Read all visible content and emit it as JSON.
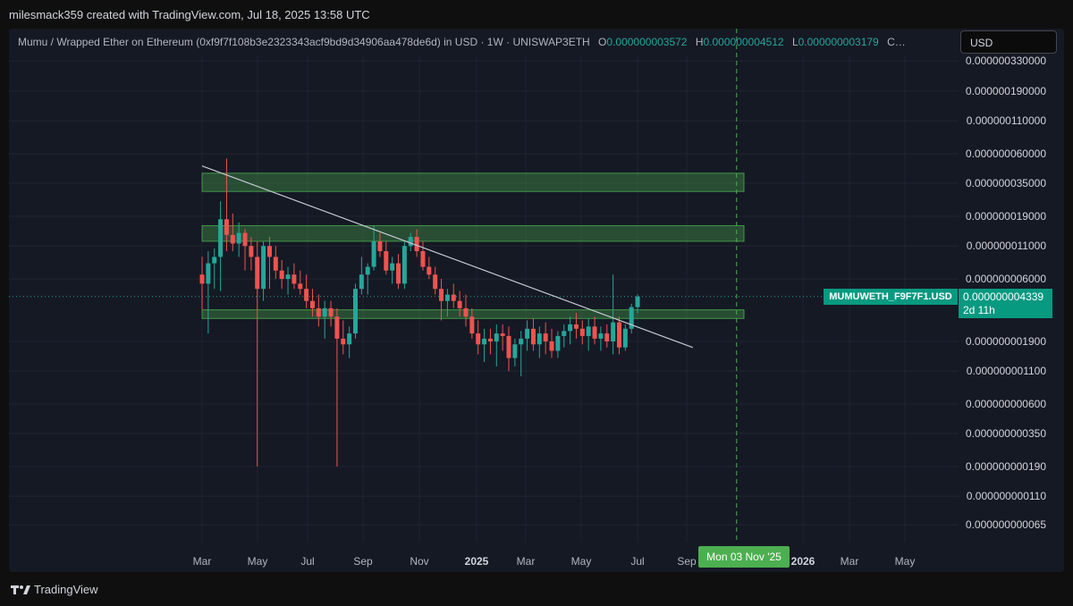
{
  "header": {
    "creator_text": "milesmack359 created with TradingView.com, Jul 18, 2025 13:58 UTC"
  },
  "legend": {
    "title": "Mumu / Wrapped Ether on Ethereum (0xf9f7f108b3e2323343acf9bd9d34906aa478de6d) in USD · 1W · UNISWAP3ETH",
    "open_key": "O",
    "open_value": "0.000000003572",
    "high_key": "H",
    "high_value": "0.000000004512",
    "low_key": "L",
    "low_value": "0.000000003179",
    "close_key": "C…"
  },
  "currency_button": {
    "label": "USD"
  },
  "price_axis": {
    "labels": [
      "0.000000330000",
      "0.000000190000",
      "0.000000110000",
      "0.000000060000",
      "0.000000035000",
      "0.000000019000",
      "0.000000011000",
      "0.000000006000",
      "0.000000001900",
      "0.000000001100",
      "0.000000000600",
      "0.000000000350",
      "0.000000000190",
      "0.000000000110",
      "0.000000000065"
    ]
  },
  "time_axis": {
    "labels": [
      "Mar",
      "May",
      "Jul",
      "Sep",
      "Nov",
      "2025",
      "Mar",
      "May",
      "Jul",
      "Sep",
      "2026",
      "Mar",
      "May"
    ],
    "crosshair_label": "Mon 03 Nov '25"
  },
  "symbol_tag": {
    "name": "MUMUWETH_F9F7F1.USD",
    "price": "0.000000004339",
    "countdown": "2d 11h"
  },
  "footer": {
    "brand": "TradingView"
  },
  "colors": {
    "background": "#151924",
    "up": "#26a69a",
    "down": "#ef5350",
    "zone": "#4caf50",
    "crosshair": "#4caf50"
  },
  "chart_data": {
    "type": "candlestick",
    "scale": "log",
    "interval": "1W",
    "pair": "MUMU/WETH",
    "grid": true,
    "candles": [
      {
        "t": "2024-03-03",
        "o": 6.5e-09,
        "h": 9e-09,
        "l": 3.4e-09,
        "c": 5.5e-09
      },
      {
        "t": "2024-03-10",
        "o": 5.5e-09,
        "h": 1e-08,
        "l": 2.2e-09,
        "c": 8e-09
      },
      {
        "t": "2024-03-17",
        "o": 8e-09,
        "h": 1.05e-08,
        "l": 5e-09,
        "c": 9e-09
      },
      {
        "t": "2024-03-24",
        "o": 9e-09,
        "h": 2.5e-08,
        "l": 4.8e-09,
        "c": 1.8e-08
      },
      {
        "t": "2024-03-31",
        "o": 1.8e-08,
        "h": 5.5e-08,
        "l": 1e-08,
        "c": 1.35e-08
      },
      {
        "t": "2024-04-07",
        "o": 1.35e-08,
        "h": 2e-08,
        "l": 1e-08,
        "c": 1.15e-08
      },
      {
        "t": "2024-04-14",
        "o": 1.15e-08,
        "h": 1.7e-08,
        "l": 9e-09,
        "c": 1.4e-08
      },
      {
        "t": "2024-04-21",
        "o": 1.4e-08,
        "h": 1.5e-08,
        "l": 7e-09,
        "c": 1.1e-08
      },
      {
        "t": "2024-04-28",
        "o": 1.1e-08,
        "h": 1.3e-08,
        "l": 7e-09,
        "c": 9e-09
      },
      {
        "t": "2024-05-05",
        "o": 9e-09,
        "h": 1.2e-08,
        "l": 1.9e-10,
        "c": 5e-09
      },
      {
        "t": "2024-05-12",
        "o": 5e-09,
        "h": 1.2e-08,
        "l": 4e-09,
        "c": 1.1e-08
      },
      {
        "t": "2024-05-19",
        "o": 1.1e-08,
        "h": 1.3e-08,
        "l": 5e-09,
        "c": 9e-09
      },
      {
        "t": "2024-05-26",
        "o": 9e-09,
        "h": 1.1e-08,
        "l": 6e-09,
        "c": 7e-09
      },
      {
        "t": "2024-06-02",
        "o": 7e-09,
        "h": 8.5e-09,
        "l": 5e-09,
        "c": 6e-09
      },
      {
        "t": "2024-06-09",
        "o": 6e-09,
        "h": 7.5e-09,
        "l": 4.5e-09,
        "c": 6.5e-09
      },
      {
        "t": "2024-06-16",
        "o": 6.5e-09,
        "h": 8e-09,
        "l": 5e-09,
        "c": 5.5e-09
      },
      {
        "t": "2024-06-23",
        "o": 5.5e-09,
        "h": 7e-09,
        "l": 4.5e-09,
        "c": 5e-09
      },
      {
        "t": "2024-06-30",
        "o": 5e-09,
        "h": 6.5e-09,
        "l": 3.5e-09,
        "c": 4e-09
      },
      {
        "t": "2024-07-07",
        "o": 4e-09,
        "h": 5e-09,
        "l": 3e-09,
        "c": 3.5e-09
      },
      {
        "t": "2024-07-14",
        "o": 3.5e-09,
        "h": 4.5e-09,
        "l": 2.5e-09,
        "c": 3e-09
      },
      {
        "t": "2024-07-21",
        "o": 3e-09,
        "h": 4e-09,
        "l": 2e-09,
        "c": 3.5e-09
      },
      {
        "t": "2024-07-28",
        "o": 3.5e-09,
        "h": 4e-09,
        "l": 2.5e-09,
        "c": 3e-09
      },
      {
        "t": "2024-08-04",
        "o": 3e-09,
        "h": 3.5e-09,
        "l": 1.9e-10,
        "c": 2e-09
      },
      {
        "t": "2024-08-11",
        "o": 2e-09,
        "h": 2.8e-09,
        "l": 1.5e-09,
        "c": 1.8e-09
      },
      {
        "t": "2024-08-18",
        "o": 1.8e-09,
        "h": 2.5e-09,
        "l": 1.4e-09,
        "c": 2.2e-09
      },
      {
        "t": "2024-08-25",
        "o": 2.2e-09,
        "h": 5.5e-09,
        "l": 2e-09,
        "c": 5e-09
      },
      {
        "t": "2024-09-01",
        "o": 5e-09,
        "h": 9e-09,
        "l": 4.5e-09,
        "c": 6.5e-09
      },
      {
        "t": "2024-09-08",
        "o": 6.5e-09,
        "h": 8e-09,
        "l": 4.5e-09,
        "c": 7.5e-09
      },
      {
        "t": "2024-09-15",
        "o": 7.5e-09,
        "h": 1.6e-08,
        "l": 7e-09,
        "c": 1.2e-08
      },
      {
        "t": "2024-09-22",
        "o": 1.2e-08,
        "h": 1.4e-08,
        "l": 9e-09,
        "c": 1e-08
      },
      {
        "t": "2024-09-29",
        "o": 1e-08,
        "h": 1.2e-08,
        "l": 6.5e-09,
        "c": 7e-09
      },
      {
        "t": "2024-10-06",
        "o": 7e-09,
        "h": 9e-09,
        "l": 5.5e-09,
        "c": 8e-09
      },
      {
        "t": "2024-10-13",
        "o": 8e-09,
        "h": 9.5e-09,
        "l": 5e-09,
        "c": 5.5e-09
      },
      {
        "t": "2024-10-20",
        "o": 5.5e-09,
        "h": 1.2e-08,
        "l": 5e-09,
        "c": 1.1e-08
      },
      {
        "t": "2024-10-27",
        "o": 1.1e-08,
        "h": 1.4e-08,
        "l": 1e-08,
        "c": 1.3e-08
      },
      {
        "t": "2024-11-03",
        "o": 1.3e-08,
        "h": 1.5e-08,
        "l": 9e-09,
        "c": 1e-08
      },
      {
        "t": "2024-11-10",
        "o": 1e-08,
        "h": 1.2e-08,
        "l": 7e-09,
        "c": 7.5e-09
      },
      {
        "t": "2024-11-17",
        "o": 7.5e-09,
        "h": 9e-09,
        "l": 6e-09,
        "c": 6.5e-09
      },
      {
        "t": "2024-11-24",
        "o": 6.5e-09,
        "h": 7.5e-09,
        "l": 4.5e-09,
        "c": 5e-09
      },
      {
        "t": "2024-12-01",
        "o": 5e-09,
        "h": 6e-09,
        "l": 2.8e-09,
        "c": 4e-09
      },
      {
        "t": "2024-12-08",
        "o": 4e-09,
        "h": 5e-09,
        "l": 3e-09,
        "c": 4.5e-09
      },
      {
        "t": "2024-12-15",
        "o": 4.5e-09,
        "h": 5.5e-09,
        "l": 3.5e-09,
        "c": 4e-09
      },
      {
        "t": "2024-12-22",
        "o": 4e-09,
        "h": 4.8e-09,
        "l": 3e-09,
        "c": 3.5e-09
      },
      {
        "t": "2024-12-29",
        "o": 3.5e-09,
        "h": 4.5e-09,
        "l": 2.5e-09,
        "c": 3e-09
      },
      {
        "t": "2025-01-05",
        "o": 3e-09,
        "h": 3.5e-09,
        "l": 2e-09,
        "c": 2.2e-09
      },
      {
        "t": "2025-01-12",
        "o": 2.2e-09,
        "h": 2.8e-09,
        "l": 1.5e-09,
        "c": 1.8e-09
      },
      {
        "t": "2025-01-19",
        "o": 1.8e-09,
        "h": 2.4e-09,
        "l": 1.3e-09,
        "c": 2e-09
      },
      {
        "t": "2025-01-26",
        "o": 2e-09,
        "h": 2.4e-09,
        "l": 1.5e-09,
        "c": 1.9e-09
      },
      {
        "t": "2025-02-02",
        "o": 1.9e-09,
        "h": 2.6e-09,
        "l": 1.2e-09,
        "c": 2.2e-09
      },
      {
        "t": "2025-02-09",
        "o": 2.2e-09,
        "h": 2.6e-09,
        "l": 1.6e-09,
        "c": 2.1e-09
      },
      {
        "t": "2025-02-16",
        "o": 2.1e-09,
        "h": 2.5e-09,
        "l": 1.1e-09,
        "c": 1.4e-09
      },
      {
        "t": "2025-02-23",
        "o": 1.4e-09,
        "h": 2e-09,
        "l": 1.2e-09,
        "c": 1.8e-09
      },
      {
        "t": "2025-03-02",
        "o": 1.8e-09,
        "h": 2.3e-09,
        "l": 1e-09,
        "c": 2e-09
      },
      {
        "t": "2025-03-09",
        "o": 2e-09,
        "h": 2.8e-09,
        "l": 1.6e-09,
        "c": 2.4e-09
      },
      {
        "t": "2025-03-16",
        "o": 2.4e-09,
        "h": 2.9e-09,
        "l": 1.6e-09,
        "c": 1.8e-09
      },
      {
        "t": "2025-03-23",
        "o": 1.8e-09,
        "h": 2.5e-09,
        "l": 1.4e-09,
        "c": 2.2e-09
      },
      {
        "t": "2025-03-30",
        "o": 2.2e-09,
        "h": 2.7e-09,
        "l": 1.5e-09,
        "c": 1.9e-09
      },
      {
        "t": "2025-04-06",
        "o": 1.9e-09,
        "h": 2.4e-09,
        "l": 1.4e-09,
        "c": 1.6e-09
      },
      {
        "t": "2025-04-13",
        "o": 1.6e-09,
        "h": 2.3e-09,
        "l": 1.4e-09,
        "c": 2.1e-09
      },
      {
        "t": "2025-04-20",
        "o": 2.1e-09,
        "h": 2.6e-09,
        "l": 1.7e-09,
        "c": 2.3e-09
      },
      {
        "t": "2025-04-27",
        "o": 2.3e-09,
        "h": 3e-09,
        "l": 1.8e-09,
        "c": 2.6e-09
      },
      {
        "t": "2025-05-04",
        "o": 2.6e-09,
        "h": 3.2e-09,
        "l": 2e-09,
        "c": 2.4e-09
      },
      {
        "t": "2025-05-11",
        "o": 2.4e-09,
        "h": 2.8e-09,
        "l": 1.8e-09,
        "c": 2.1e-09
      },
      {
        "t": "2025-05-18",
        "o": 2.1e-09,
        "h": 2.9e-09,
        "l": 1.6e-09,
        "c": 2.5e-09
      },
      {
        "t": "2025-05-25",
        "o": 2.5e-09,
        "h": 3e-09,
        "l": 1.8e-09,
        "c": 2e-09
      },
      {
        "t": "2025-06-01",
        "o": 2e-09,
        "h": 2.5e-09,
        "l": 1.6e-09,
        "c": 2.2e-09
      },
      {
        "t": "2025-06-08",
        "o": 2.2e-09,
        "h": 2.6e-09,
        "l": 1.7e-09,
        "c": 1.9e-09
      },
      {
        "t": "2025-06-15",
        "o": 1.9e-09,
        "h": 6.5e-09,
        "l": 1.5e-09,
        "c": 2.7e-09
      },
      {
        "t": "2025-06-22",
        "o": 2.7e-09,
        "h": 3e-09,
        "l": 1.5e-09,
        "c": 1.7e-09
      },
      {
        "t": "2025-06-29",
        "o": 1.7e-09,
        "h": 2.6e-09,
        "l": 1.6e-09,
        "c": 2.4e-09
      },
      {
        "t": "2025-07-06",
        "o": 2.4e-09,
        "h": 3.8e-09,
        "l": 2.2e-09,
        "c": 3.572e-09
      },
      {
        "t": "2025-07-13",
        "o": 3.572e-09,
        "h": 4.512e-09,
        "l": 3.179e-09,
        "c": 4.339e-09
      }
    ],
    "zones": [
      {
        "low": 3e-08,
        "high": 4.2e-08
      },
      {
        "low": 1.2e-08,
        "high": 1.6e-08
      },
      {
        "low": 2.9e-09,
        "high": 3.4e-09
      }
    ],
    "trendline": {
      "start_t": "2024-03-03",
      "start_price": 4.8e-08,
      "end_t": "2025-09-14",
      "end_price": 1.7e-09
    },
    "crosshair_time": "2025-11-03",
    "last_price": 4.339e-09
  }
}
